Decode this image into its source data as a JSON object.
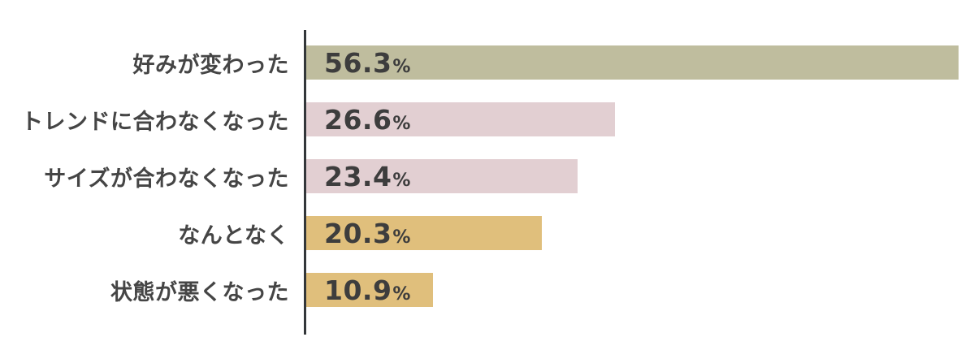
{
  "chart_data": {
    "type": "bar",
    "orientation": "horizontal",
    "title": "",
    "xlabel": "",
    "ylabel": "",
    "grid": false,
    "legend": false,
    "unit": "%",
    "xlim": [
      0,
      57.6
    ],
    "categories": [
      "好みが変わった",
      "トレンドに合わなくなった",
      "サイズが合わなくなった",
      "なんとなく",
      "状態が悪くなった"
    ],
    "values": [
      56.3,
      26.6,
      23.4,
      20.3,
      10.9
    ],
    "value_labels": [
      "56.3",
      "26.6",
      "23.4",
      "20.3",
      "10.9"
    ],
    "bar_colors": [
      "#bfbd9e",
      "#e2cfd2",
      "#e2cfd2",
      "#e0bf7c",
      "#e0bf7c"
    ]
  },
  "colors": {
    "olive_bar": "#bfbd9e",
    "pink_bar": "#e2cfd2",
    "gold_bar": "#e0bf7c",
    "axis_line": "#33373a",
    "category_text": "#454545",
    "value_text": "#3d3d3d",
    "background": "#ffffff"
  }
}
